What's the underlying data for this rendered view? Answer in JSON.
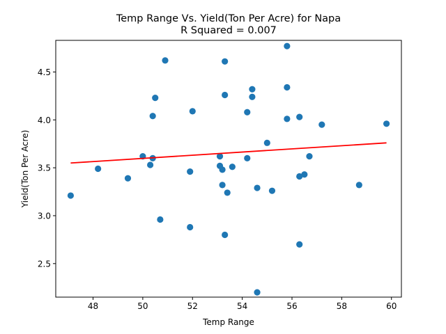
{
  "chart_data": {
    "type": "scatter",
    "title_line1": "Temp Range Vs. Yield(Ton Per Acre) for Napa",
    "title_line2": "R Squared =  0.007",
    "xlabel": "Temp Range",
    "ylabel": "Yield(Ton Per Acre)",
    "xlim": [
      46.5,
      60.4
    ],
    "ylim": [
      2.15,
      4.83
    ],
    "xticks": [
      48,
      50,
      52,
      54,
      56,
      58,
      60
    ],
    "xtick_labels": [
      "48",
      "50",
      "52",
      "54",
      "56",
      "58",
      "60"
    ],
    "yticks": [
      2.5,
      3.0,
      3.5,
      4.0,
      4.5
    ],
    "ytick_labels": [
      "2.5",
      "3.0",
      "3.5",
      "4.0",
      "4.5"
    ],
    "grid": false,
    "legend": "none",
    "point_color": "#1f77b4",
    "line_color": "#ff0000",
    "points": [
      [
        47.1,
        3.21
      ],
      [
        48.2,
        3.49
      ],
      [
        49.4,
        3.39
      ],
      [
        50.0,
        3.62
      ],
      [
        50.3,
        3.53
      ],
      [
        50.4,
        3.6
      ],
      [
        50.4,
        4.04
      ],
      [
        50.5,
        4.23
      ],
      [
        50.7,
        2.96
      ],
      [
        50.9,
        4.62
      ],
      [
        51.9,
        3.46
      ],
      [
        51.9,
        2.88
      ],
      [
        52.0,
        4.09
      ],
      [
        53.1,
        3.62
      ],
      [
        53.1,
        3.52
      ],
      [
        53.2,
        3.48
      ],
      [
        53.2,
        3.32
      ],
      [
        53.3,
        4.61
      ],
      [
        53.3,
        4.26
      ],
      [
        53.3,
        2.8
      ],
      [
        53.4,
        3.24
      ],
      [
        53.6,
        3.51
      ],
      [
        54.2,
        4.08
      ],
      [
        54.2,
        3.6
      ],
      [
        54.4,
        4.32
      ],
      [
        54.4,
        4.24
      ],
      [
        54.6,
        3.29
      ],
      [
        54.6,
        2.2
      ],
      [
        55.0,
        3.76
      ],
      [
        55.2,
        3.26
      ],
      [
        55.8,
        4.77
      ],
      [
        55.8,
        4.34
      ],
      [
        55.8,
        4.01
      ],
      [
        56.3,
        4.03
      ],
      [
        56.3,
        3.41
      ],
      [
        56.3,
        2.7
      ],
      [
        56.5,
        3.43
      ],
      [
        56.7,
        3.62
      ],
      [
        57.2,
        3.95
      ],
      [
        58.7,
        3.32
      ],
      [
        59.8,
        3.96
      ]
    ],
    "regression_line": {
      "x": [
        47.1,
        59.8
      ],
      "y": [
        3.55,
        3.76
      ]
    }
  }
}
